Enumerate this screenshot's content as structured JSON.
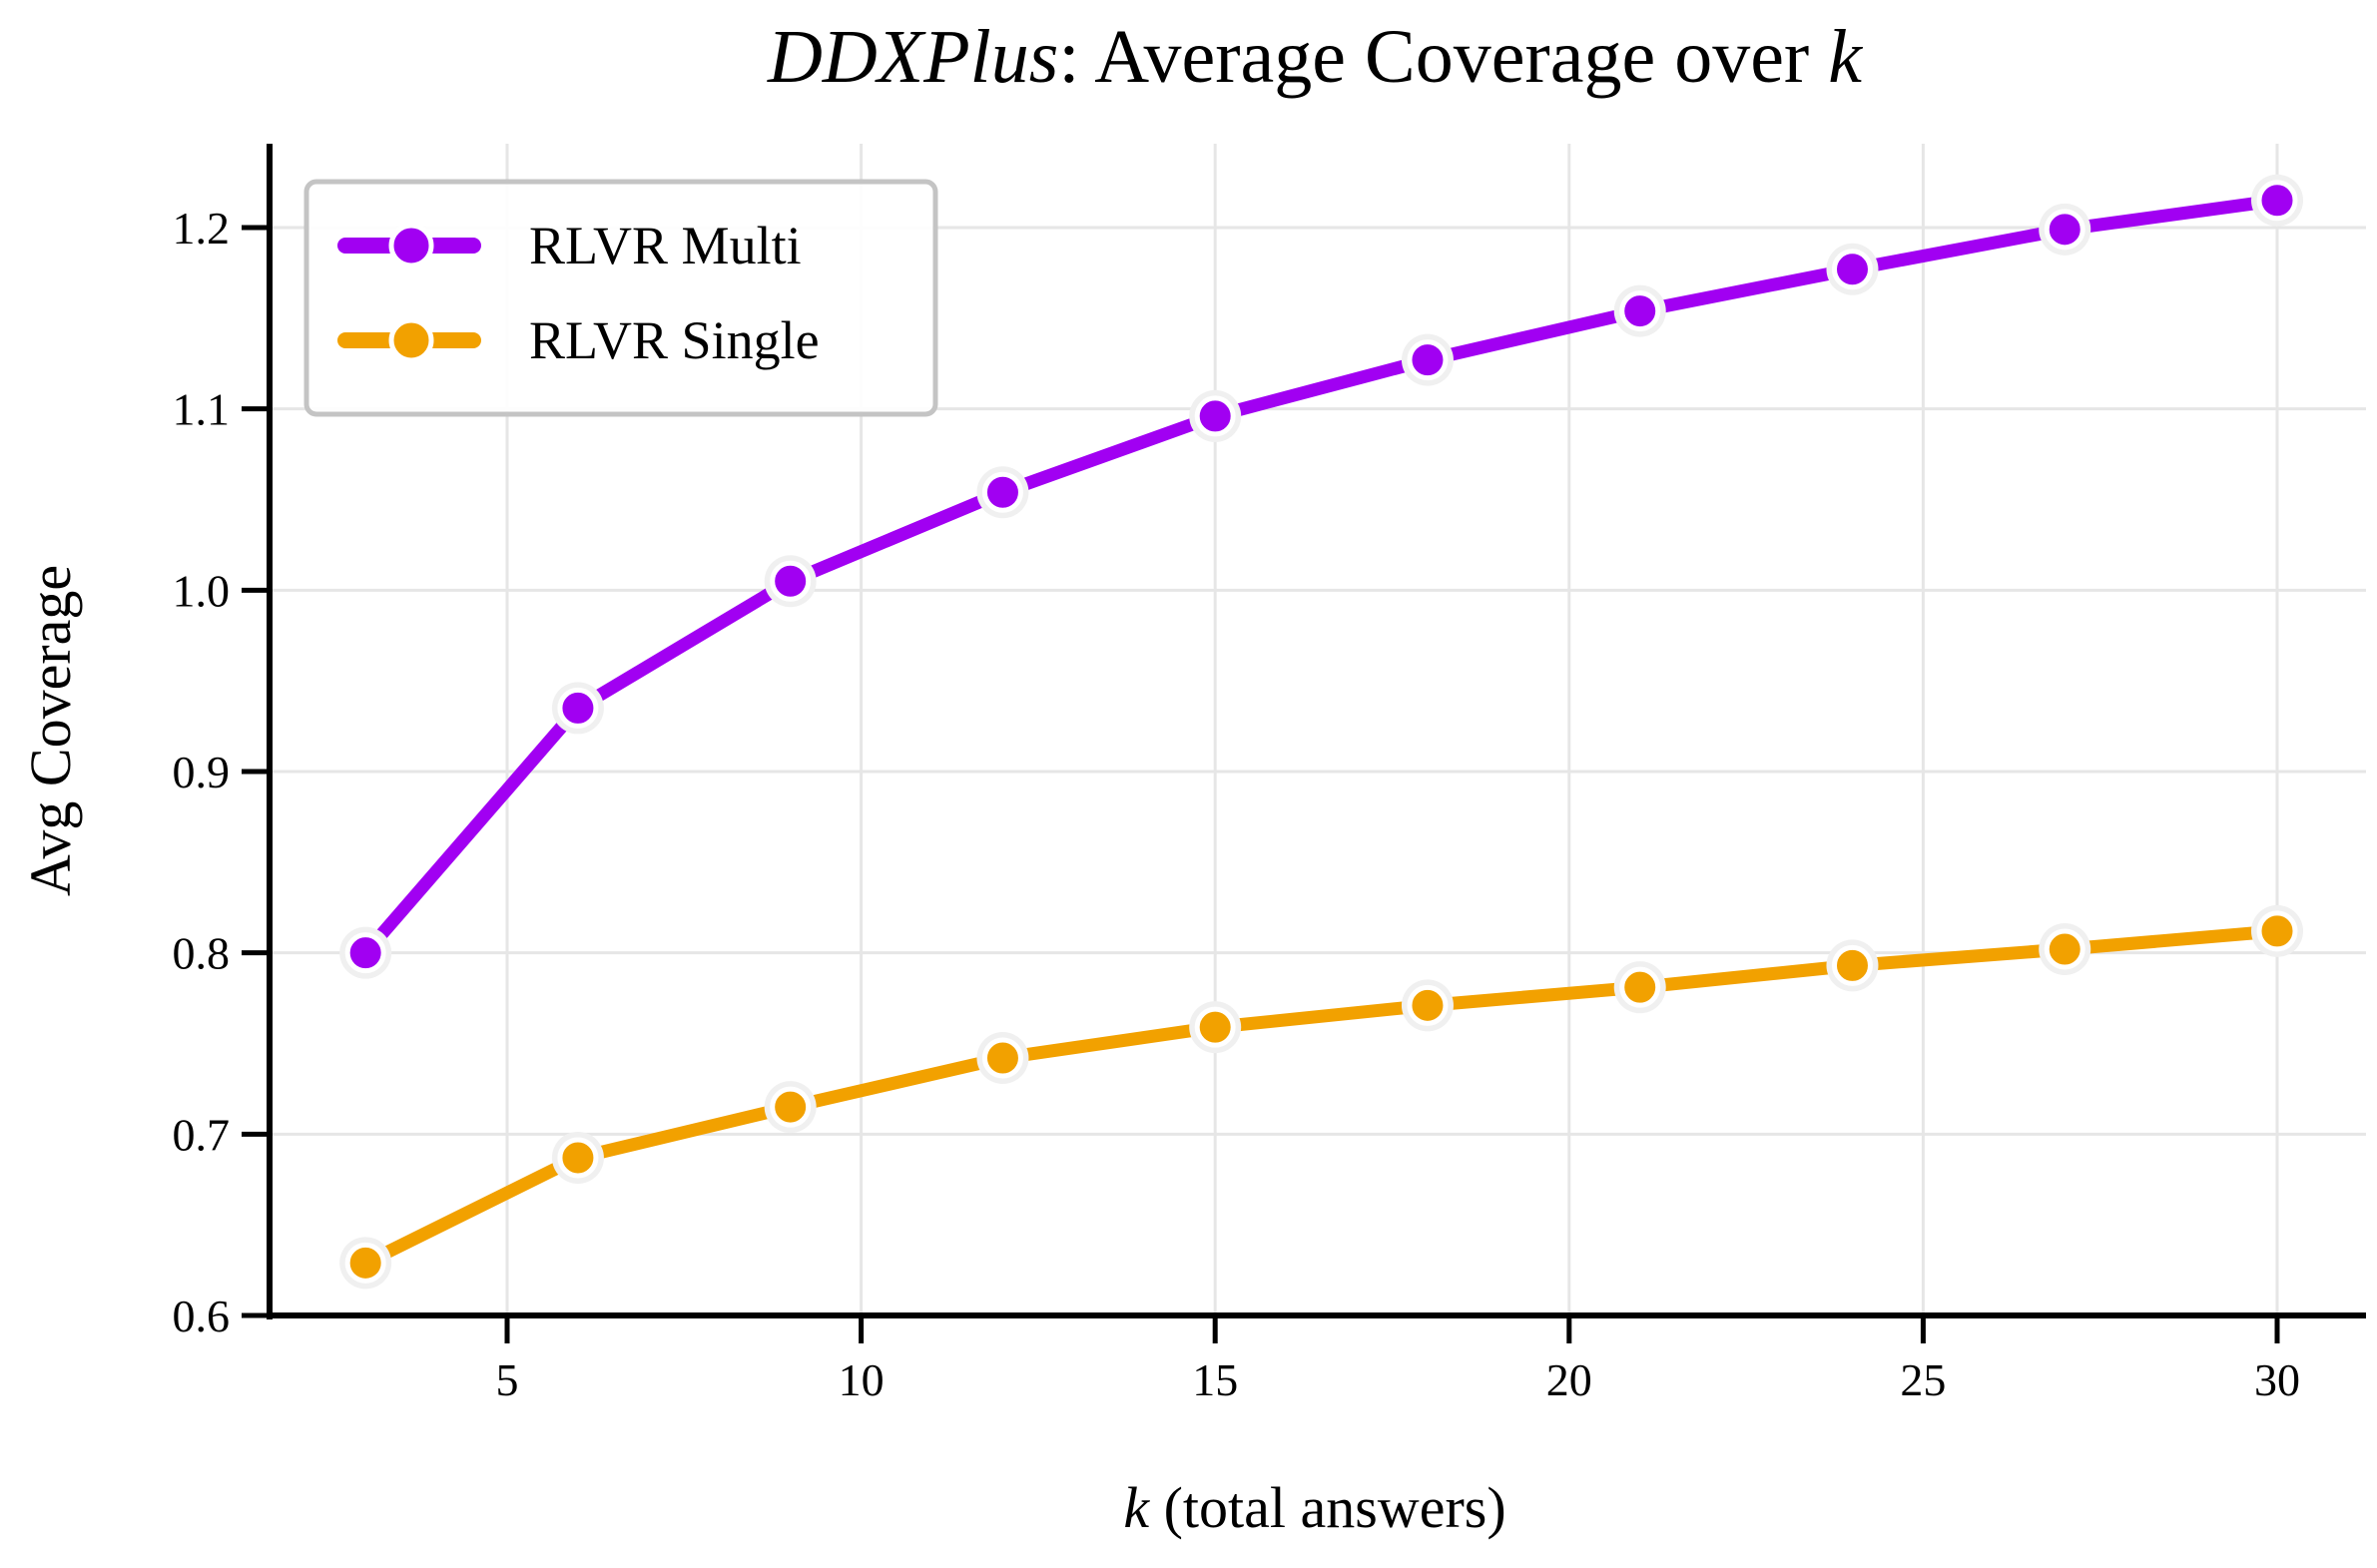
{
  "chart_data": {
    "type": "line",
    "title_italic": "DDXPlus",
    "title_rest": ": Average Coverage over ",
    "title_k": "k",
    "xlabel_italic": "k",
    "xlabel_rest": " (total answers)",
    "ylabel": "Avg Coverage",
    "x": [
      3,
      6,
      9,
      12,
      15,
      18,
      21,
      24,
      27,
      30
    ],
    "xlim": [
      1.6,
      31.4
    ],
    "ylim": [
      0.6,
      1.245
    ],
    "xticks": [
      5,
      10,
      15,
      20,
      25,
      30
    ],
    "yticks": [
      "0.6",
      "0.7",
      "0.8",
      "0.9",
      "1.0",
      "1.1",
      "1.2"
    ],
    "grid": true,
    "legend_position": "top-left",
    "series": [
      {
        "name": "RLVR Multi",
        "color": "#a100f2",
        "values": [
          0.8,
          0.935,
          1.005,
          1.054,
          1.096,
          1.127,
          1.154,
          1.177,
          1.199,
          1.215
        ]
      },
      {
        "name": "RLVR Single",
        "color": "#f2a100",
        "values": [
          0.629,
          0.687,
          0.715,
          0.742,
          0.759,
          0.771,
          0.781,
          0.793,
          0.802,
          0.812
        ]
      }
    ]
  }
}
